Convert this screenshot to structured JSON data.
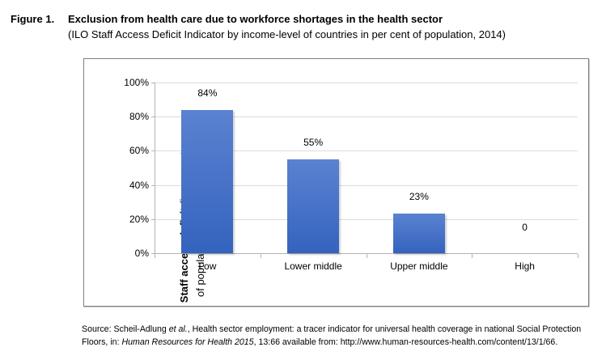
{
  "figure": {
    "label": "Figure 1.",
    "title": "Exclusion from health care due to workforce shortages in the health sector",
    "subtitle": "(ILO Staff Access Deficit Indicator by income-level of countries in per cent of population, 2014)"
  },
  "chart_data": {
    "type": "bar",
    "categories": [
      "Low",
      "Lower middle",
      "Upper middle",
      "High"
    ],
    "values": [
      84,
      55,
      23,
      0
    ],
    "value_labels": [
      "84%",
      "55%",
      "23%",
      "0"
    ],
    "y_ticks": [
      "0%",
      "20%",
      "40%",
      "60%",
      "80%",
      "100%"
    ],
    "y_tick_values": [
      0,
      20,
      40,
      60,
      80,
      100
    ],
    "ylim": [
      0,
      100
    ],
    "grid": true,
    "legend": "none",
    "ylabel": "Staff access deficit (in per cent of population, threshold: 41.1)",
    "ylabel_line1_bold": "Staff access deficit",
    "ylabel_line1_rest": " (in per cent",
    "ylabel_line2": "of population, threshold: 41.1)",
    "bar_color_top": "#5b82d1",
    "bar_color_bottom": "#3463be",
    "gridline_color": "#dcdcdc",
    "axis_color": "#b3b3b3",
    "box_border_color": "#808080"
  },
  "source": {
    "lines": [
      [
        {
          "t": "Source: Scheil-Adlung ",
          "i": false
        },
        {
          "t": "et al.",
          "i": true
        },
        {
          "t": ", Health sector employment: a tracer indicator for universal health coverage in national Social Protection",
          "i": false
        }
      ],
      [
        {
          "t": "Floors, in: ",
          "i": false
        },
        {
          "t": "Human Resources for Health 2015",
          "i": true
        },
        {
          "t": ", 13:66 available from: http://www.human-resources-health.com/content/13/1/66.",
          "i": false
        }
      ]
    ]
  }
}
